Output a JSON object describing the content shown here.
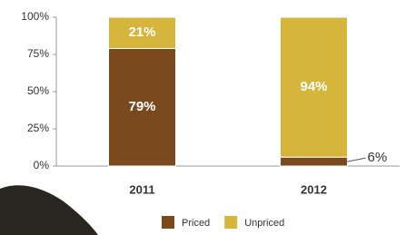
{
  "chart_data": {
    "type": "bar",
    "stacked": true,
    "categories": [
      "2011",
      "2012"
    ],
    "series": [
      {
        "name": "Priced",
        "color": "#7a4a1e",
        "values": [
          79,
          6
        ],
        "value_labels": [
          "79%",
          "6%"
        ]
      },
      {
        "name": "Unpriced",
        "color": "#d6b53c",
        "values": [
          21,
          94
        ],
        "value_labels": [
          "21%",
          "94%"
        ]
      }
    ],
    "ylim": [
      0,
      100
    ],
    "yticks": [
      {
        "value": 0,
        "label": "0%"
      },
      {
        "value": 25,
        "label": "25%"
      },
      {
        "value": 50,
        "label": "50%"
      },
      {
        "value": 75,
        "label": "75%"
      },
      {
        "value": 100,
        "label": "100%"
      }
    ],
    "legend": "bottom"
  }
}
